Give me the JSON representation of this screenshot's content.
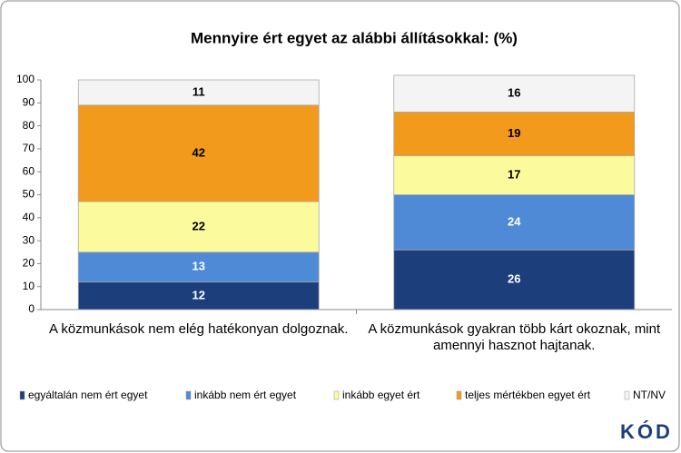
{
  "chart_data": {
    "type": "stacked_bar",
    "title": "Mennyire ért egyet az alábbi állításokkal: (%)",
    "categories": [
      "A közmunkások nem elég hatékonyan dolgoznak.",
      "A közmunkások gyakran több kárt okoznak, mint amennyi hasznot hajtanak."
    ],
    "series": [
      {
        "name": "egyáltalán nem ért egyet",
        "color": "#1c3f7c",
        "values": [
          12,
          26
        ]
      },
      {
        "name": "inkább nem ért egyet",
        "color": "#4f8ad6",
        "values": [
          13,
          24
        ]
      },
      {
        "name": "inkább egyet ért",
        "color": "#fbfb9e",
        "values": [
          22,
          17
        ]
      },
      {
        "name": "teljes mértékben egyet ért",
        "color": "#f29a1c",
        "values": [
          42,
          19
        ]
      },
      {
        "name": "NT/NV",
        "color": "#f4f4f4",
        "values": [
          11,
          16
        ]
      }
    ],
    "ylim": [
      0,
      100
    ],
    "yticks": [
      0,
      10,
      20,
      30,
      40,
      50,
      60,
      70,
      80,
      90,
      100
    ],
    "logo": "KÓD"
  }
}
